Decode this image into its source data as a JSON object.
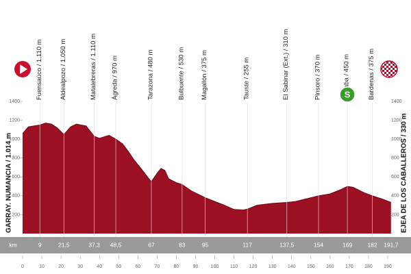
{
  "chart_data": {
    "type": "area",
    "start_label": "GARRAY. NUMANCIA / 1.014 m",
    "finish_label": "EJEA DE LOS CABALLEROS / 330 m",
    "color": "#9b1022",
    "x": [
      0,
      3,
      6,
      9,
      12,
      15,
      18,
      21.5,
      25,
      28,
      33,
      37.3,
      40,
      45,
      48.5,
      52,
      55,
      58,
      62,
      65,
      67,
      70,
      72,
      74,
      76,
      80,
      83,
      88,
      95,
      100,
      105,
      110,
      115,
      117,
      122,
      130,
      137.5,
      142,
      150,
      154,
      160,
      166,
      169,
      172,
      178,
      182,
      188,
      191.7
    ],
    "values": [
      1060,
      1130,
      1140,
      1150,
      1170,
      1160,
      1120,
      1050,
      1130,
      1160,
      1140,
      1030,
      1010,
      1040,
      1000,
      950,
      870,
      780,
      680,
      600,
      550,
      640,
      690,
      670,
      580,
      540,
      520,
      450,
      380,
      340,
      300,
      255,
      250,
      260,
      300,
      320,
      330,
      340,
      380,
      400,
      420,
      470,
      500,
      490,
      430,
      400,
      360,
      330
    ],
    "xlim": [
      0,
      190
    ],
    "ylim": [
      0,
      1400
    ],
    "xticks": [
      0,
      10,
      20,
      30,
      40,
      50,
      60,
      70,
      80,
      90,
      100,
      110,
      120,
      130,
      140,
      150,
      160,
      170,
      180,
      190
    ],
    "yticks": [
      200,
      400,
      600,
      800,
      1000,
      1200,
      1400
    ],
    "km_unit": "km",
    "waypoints": [
      {
        "label": "Fuensaúco / 1.110 m",
        "km": 9
      },
      {
        "label": "Aldealpozo / 1.050 m",
        "km": {
          "value": 21.5,
          "label": "21,5"
        }
      },
      {
        "label": "Matalebreras / 1.110 m",
        "km": {
          "value": 37.3,
          "label": "37,3"
        }
      },
      {
        "label": "Ágreda / 970 m",
        "km": {
          "value": 48.5,
          "label": "48,5"
        }
      },
      {
        "label": "Tarazona / 480 m",
        "km": 67
      },
      {
        "label": "Bulbuente / 530 m",
        "km": 83
      },
      {
        "label": "Magallón / 375 m",
        "km": 95
      },
      {
        "label": "Tauste / 255 m",
        "km": 117
      },
      {
        "label": "El Sabinar (Ext.) / 310 m",
        "km": {
          "value": 137.5,
          "label": "137,5"
        }
      },
      {
        "label": "Pinsoro / 370 m",
        "km": 154
      },
      {
        "label": "Sádaba / 450 m",
        "km": 169,
        "icon": "S"
      },
      {
        "label": "Bardenas / 375 m",
        "km": 182
      }
    ],
    "finish_km": {
      "value": 191.7,
      "label": "191,7"
    }
  }
}
